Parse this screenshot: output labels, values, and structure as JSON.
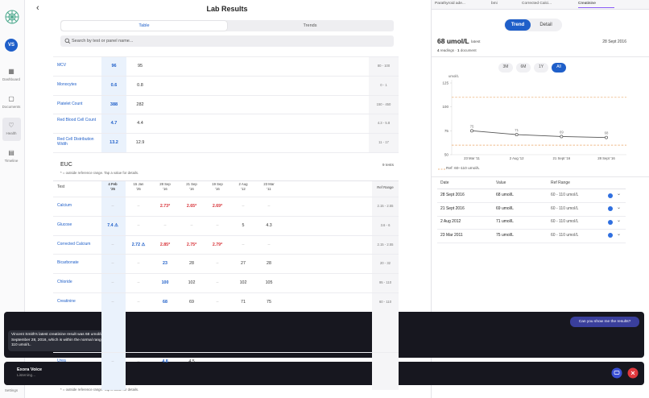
{
  "sidebar": {
    "avatar": "VS",
    "nav": [
      "Dashboard",
      "Documents",
      "Health",
      "Timeline"
    ],
    "settings": "Settings"
  },
  "header": {
    "title": "Lab Results",
    "tabs": [
      "Table",
      "Trends"
    ],
    "search": "Search by test or panel name..."
  },
  "table1": {
    "rows": [
      [
        "MCV",
        "96",
        "95",
        "80 - 100"
      ],
      [
        "Monocytes",
        "0.6",
        "0.8",
        "0 - 1"
      ],
      [
        "Platelet Count",
        "388",
        "282",
        "150 - 450"
      ],
      [
        "Red Blood Cell Count",
        "4.7",
        "4.4",
        "4.3 - 5.8"
      ],
      [
        "Red Cell Distribution Width",
        "13.2",
        "12.9",
        "11 - 17"
      ]
    ]
  },
  "euc": {
    "title": "EUC",
    "note": "* = outside reference range. Tap a value for details.",
    "count": "9 tests",
    "columns": [
      "Test",
      [
        "4 Feb",
        "'25"
      ],
      [
        "15 Jan",
        "'25"
      ],
      [
        "28 Sep",
        "'16"
      ],
      [
        "21 Sep",
        "'16"
      ],
      [
        "19 Sep",
        "'16"
      ],
      [
        "2 Aug",
        "'12"
      ],
      [
        "23 Mar",
        "'11"
      ],
      "Ref Range"
    ],
    "rows": [
      [
        "Calcium",
        "–",
        "–",
        "2.73*",
        "2.65*",
        "2.69*",
        "–",
        "–",
        "2.15 - 2.55"
      ],
      [
        "Glucose",
        "7.4 ⚠",
        "–",
        "–",
        "–",
        "–",
        "5",
        "4.3",
        "3.6 - 6"
      ],
      [
        "Corrected Calcium",
        "–",
        "2.72 ⚠",
        "2.85*",
        "2.75*",
        "2.79*",
        "–",
        "–",
        "2.15 - 2.55"
      ],
      [
        "Bicarbonate",
        "–",
        "–",
        "23",
        "28",
        "–",
        "27",
        "28",
        "20 - 32"
      ],
      [
        "Chloride",
        "–",
        "–",
        "100",
        "102",
        "–",
        "102",
        "105",
        "95 - 110"
      ],
      [
        "Creatinine",
        "–",
        "–",
        "68",
        "69",
        "–",
        "71",
        "75",
        "60 - 110"
      ],
      [
        "Urea",
        "–",
        "–",
        "4.8",
        "4.5"
      ]
    ]
  },
  "footer_note": "* = outside reference range. Tap a value for details.",
  "detail": {
    "tabs": [
      "Parathyroid ade...",
      "bmi",
      "Corrected Calci...",
      "Creatinine"
    ],
    "toggle": [
      "Trend",
      "Detail"
    ],
    "latest_value": "68 umol/L",
    "latest_label": "latest",
    "latest_date": "28 Sept 2016",
    "readings_count": "4",
    "readings_label": "readings",
    "documents_count": "1",
    "documents_label": "document",
    "ranges": [
      "3M",
      "6M",
      "1Y",
      "All"
    ],
    "chart_data": {
      "type": "line",
      "y_label": "umol/L",
      "categories": [
        "23 Mar '11",
        "2 Aug '12",
        "21 Sept '16",
        "28 Sept '16"
      ],
      "series": [
        {
          "name": "Creatinine",
          "color": "#555555",
          "values": [
            75,
            71,
            69,
            68
          ]
        }
      ],
      "ylim": [
        50,
        125
      ],
      "yticks": [
        50,
        75,
        100,
        125
      ],
      "reference_lines": [
        60,
        110
      ],
      "reference_color": "#e9a463",
      "reference_label": "Ref: 60–110 umol/L",
      "grid": false
    },
    "readings_table": {
      "columns": [
        "Date",
        "Value",
        "Ref Range"
      ],
      "rows": [
        [
          "28 Sept 2016",
          "68 umol/L",
          "60 - 110 umol/L"
        ],
        [
          "21 Sept 2016",
          "69 umol/L",
          "60 - 110 umol/L"
        ],
        [
          "2 Aug 2012",
          "71 umol/L",
          "60 - 110 umol/L"
        ],
        [
          "23 Mar 2011",
          "75 umol/L",
          "60 - 110 umol/L"
        ]
      ]
    }
  },
  "chat": {
    "user": "Can you show me the results?",
    "assistant": "Vincent Smith's latest creatinine result was 68 umol/L on September 28, 2016, which is within the normal range of 60 to 110 umol/L."
  },
  "voice": {
    "title": "Exora Voice",
    "status": "Listening..."
  }
}
